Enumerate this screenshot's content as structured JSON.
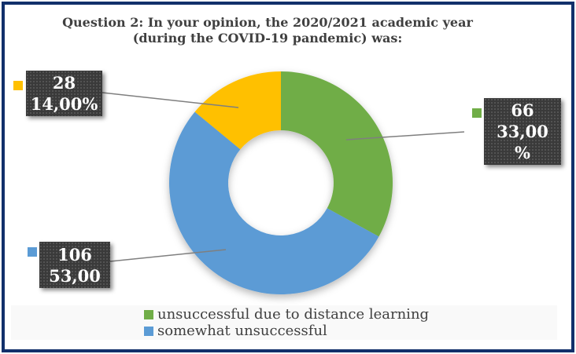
{
  "styles": {
    "background": "#FFFFFF",
    "border_color": "#12306B",
    "text_color": "#404040",
    "label_box_bg": "#3A3A3A",
    "label_text_color": "#FFFFFF",
    "leader_line_color": "#7F7F7F",
    "legend_bg": "#F9F9F9"
  },
  "chart_data": {
    "type": "pie",
    "subtype": "donut",
    "title": "Question 2: In your opinion, the 2020/2021 academic year (during the COVID-19 pandemic) was:",
    "title_lines": [
      "Question 2: In your opinion, the 2020/2021 academic year",
      "(during the COVID-19 pandemic) was:"
    ],
    "start_angle_deg": 0,
    "direction": "clockwise",
    "hole_ratio": 0.47,
    "legend_position": "bottom",
    "segments": [
      {
        "name": "unsuccessful due to distance learning",
        "count": 66,
        "percent": 33.0,
        "color": "#70AD47",
        "label_lines": [
          "66",
          "33,00",
          "%"
        ]
      },
      {
        "name": "somewhat unsuccessful",
        "count": 106,
        "percent": 53.0,
        "color": "#5B9BD5",
        "label_lines": [
          "106",
          "53,00"
        ]
      },
      {
        "count": 28,
        "percent": 14.0,
        "color": "#FFC000",
        "label_lines": [
          "28",
          "14,00%"
        ]
      }
    ],
    "legend_visible": [
      {
        "label": "unsuccessful due to distance learning",
        "color": "#70AD47"
      },
      {
        "label": "somewhat unsuccessful",
        "color": "#5B9BD5"
      }
    ]
  }
}
